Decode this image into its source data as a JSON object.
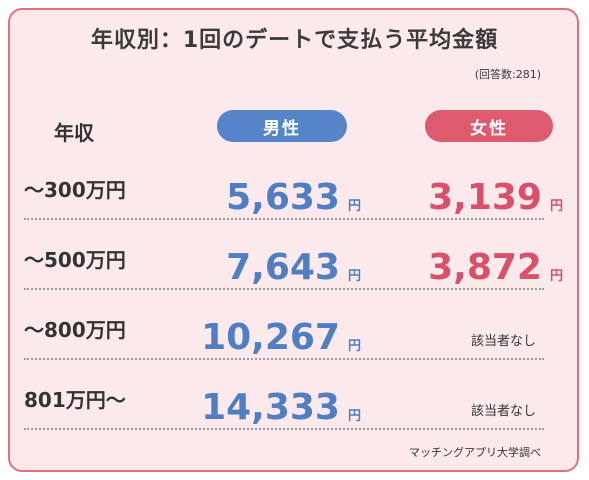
{
  "title": "年収別：1回のデートで支払う平均金額",
  "respondents": "(回答数:281)",
  "header": {
    "income_label": "年収",
    "male_label": "男性",
    "female_label": "女性"
  },
  "colors": {
    "male": "#5585c8",
    "female": "#de5a6f",
    "border": "#e2707e",
    "background": "#fbe9ec"
  },
  "rows": [
    {
      "income": "〜300万円",
      "male": "5,633",
      "male_unit": "円",
      "female": "3,139",
      "female_unit": "円"
    },
    {
      "income": "〜500万円",
      "male": "7,643",
      "male_unit": "円",
      "female": "3,872",
      "female_unit": "円"
    },
    {
      "income": "〜800万円",
      "male": "10,267",
      "male_unit": "円",
      "female": "該当者なし"
    },
    {
      "income": "801万円〜",
      "male": "14,333",
      "male_unit": "円",
      "female": "該当者なし"
    }
  ],
  "credit": "マッチングアプリ大学調べ"
}
